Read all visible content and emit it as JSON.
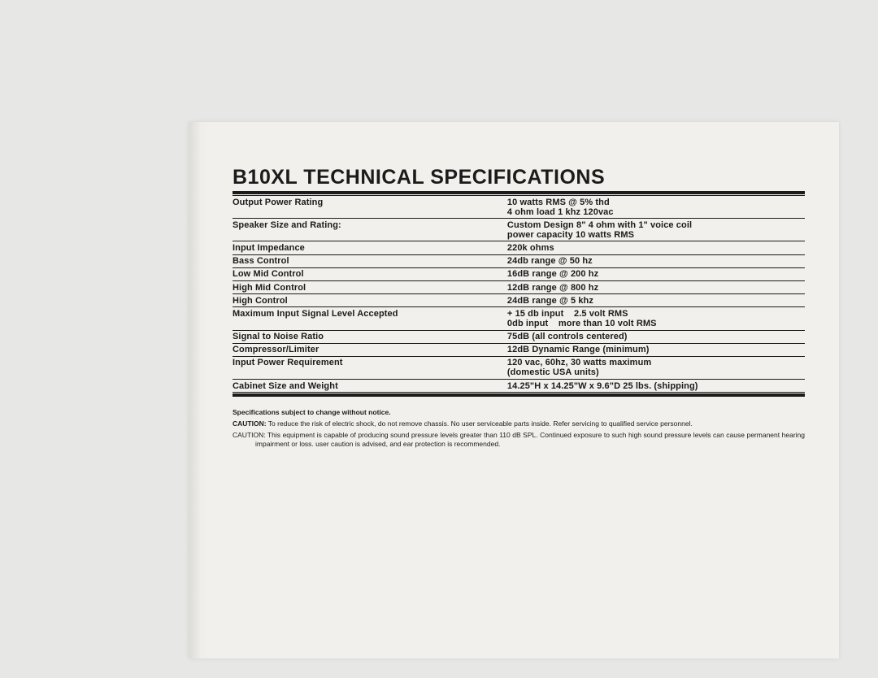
{
  "title": "B10XL TECHNICAL SPECIFICATIONS",
  "specs": [
    {
      "label": "Output Power Rating",
      "value": "10 watts RMS @ 5% thd",
      "value2": "4 ohm load 1 khz 120vac"
    },
    {
      "label": "Speaker Size and Rating:",
      "value": "Custom Design 8\" 4 ohm with 1\" voice coil",
      "value2": "power capacity 10 watts RMS"
    },
    {
      "label": "Input Impedance",
      "value": "220k ohms"
    },
    {
      "label": "Bass Control",
      "value": "24db range @ 50 hz"
    },
    {
      "label": "Low Mid Control",
      "value": "16dB range @ 200 hz"
    },
    {
      "label": "High Mid Control",
      "value": "12dB range @ 800 hz"
    },
    {
      "label": "High Control",
      "value": "24dB range @ 5 khz"
    },
    {
      "label": "Maximum Input Signal Level Accepted",
      "value": "+ 15 db input    2.5 volt RMS",
      "value2": "0db input    more than 10 volt RMS"
    },
    {
      "label": "Signal to Noise Ratio",
      "value": "75dB (all controls centered)"
    },
    {
      "label": "Compressor/Limiter",
      "value": "12dB Dynamic Range (minimum)"
    },
    {
      "label": "Input Power Requirement",
      "value": "120 vac, 60hz, 30 watts maximum",
      "value2": "(domestic USA units)"
    },
    {
      "label": "Cabinet Size and Weight",
      "value": "14.25\"H x 14.25\"W x 9.6\"D 25 lbs. (shipping)"
    }
  ],
  "footnote": "Specifications subject to change without notice.",
  "caution1_label": "CAUTION:",
  "caution1_text": " To reduce the risk of electric shock, do not remove chassis. No user serviceable parts inside. Refer servicing to qualified service personnel.",
  "caution2_label": "CAUTION:",
  "caution2_text": " This equipment is capable of producing sound pressure levels greater than 110 dB SPL. Continued exposure to such high sound pressure levels can cause permanent hearing impairment or loss. user caution is advised, and ear protection is recommended.",
  "colors": {
    "paper": "#f2f0ec",
    "bg": "#e7e7e6",
    "ink": "#1b1b1b"
  }
}
